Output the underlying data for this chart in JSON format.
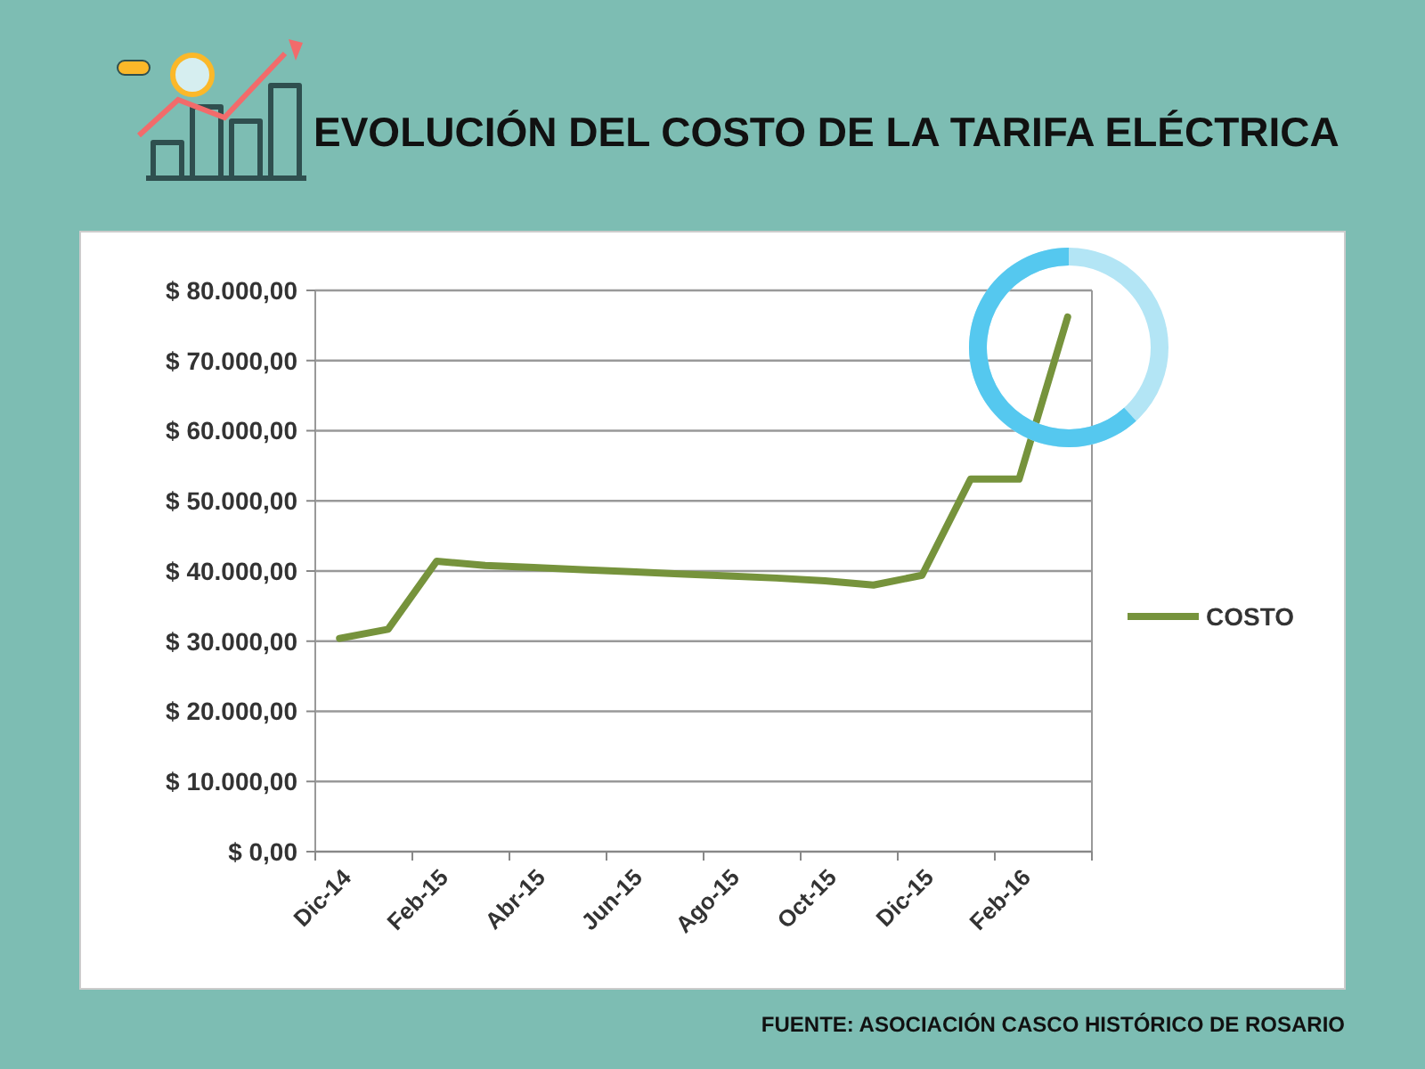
{
  "chart_data": {
    "type": "line",
    "title": "EVOLUCIÓN DEL COSTO DE LA TARIFA ELÉCTRICA",
    "categories": [
      "Dic-14",
      null,
      "Feb-15",
      null,
      "Abr-15",
      null,
      "Jun-15",
      null,
      "Ago-15",
      null,
      "Oct-15",
      null,
      "Dic-15",
      null,
      "Feb-16",
      null
    ],
    "series": [
      {
        "name": "COSTO",
        "color": "#76933c",
        "values": [
          30400,
          31700,
          41400,
          40800,
          40500,
          40200,
          39900,
          39600,
          39300,
          39000,
          38600,
          38000,
          39400,
          53100,
          53100,
          76200
        ]
      }
    ],
    "ylim": [
      0,
      80000
    ],
    "yticks": [
      {
        "value": 0,
        "label": "$ 0,00"
      },
      {
        "value": 10000,
        "label": "$ 10.000,00"
      },
      {
        "value": 20000,
        "label": "$ 20.000,00"
      },
      {
        "value": 30000,
        "label": "$ 30.000,00"
      },
      {
        "value": 40000,
        "label": "$ 40.000,00"
      },
      {
        "value": 50000,
        "label": "$ 50.000,00"
      },
      {
        "value": 60000,
        "label": "$ 60.000,00"
      },
      {
        "value": 70000,
        "label": "$ 70.000,00"
      },
      {
        "value": 80000,
        "label": "$ 80.000,00"
      }
    ],
    "grid": "y",
    "legend": "right",
    "marker": "none",
    "line_style": "solid",
    "annotations": [
      "FUENTE: ASOCIACIÓN CASCO HISTÓRICO DE ROSARIO"
    ]
  }
}
